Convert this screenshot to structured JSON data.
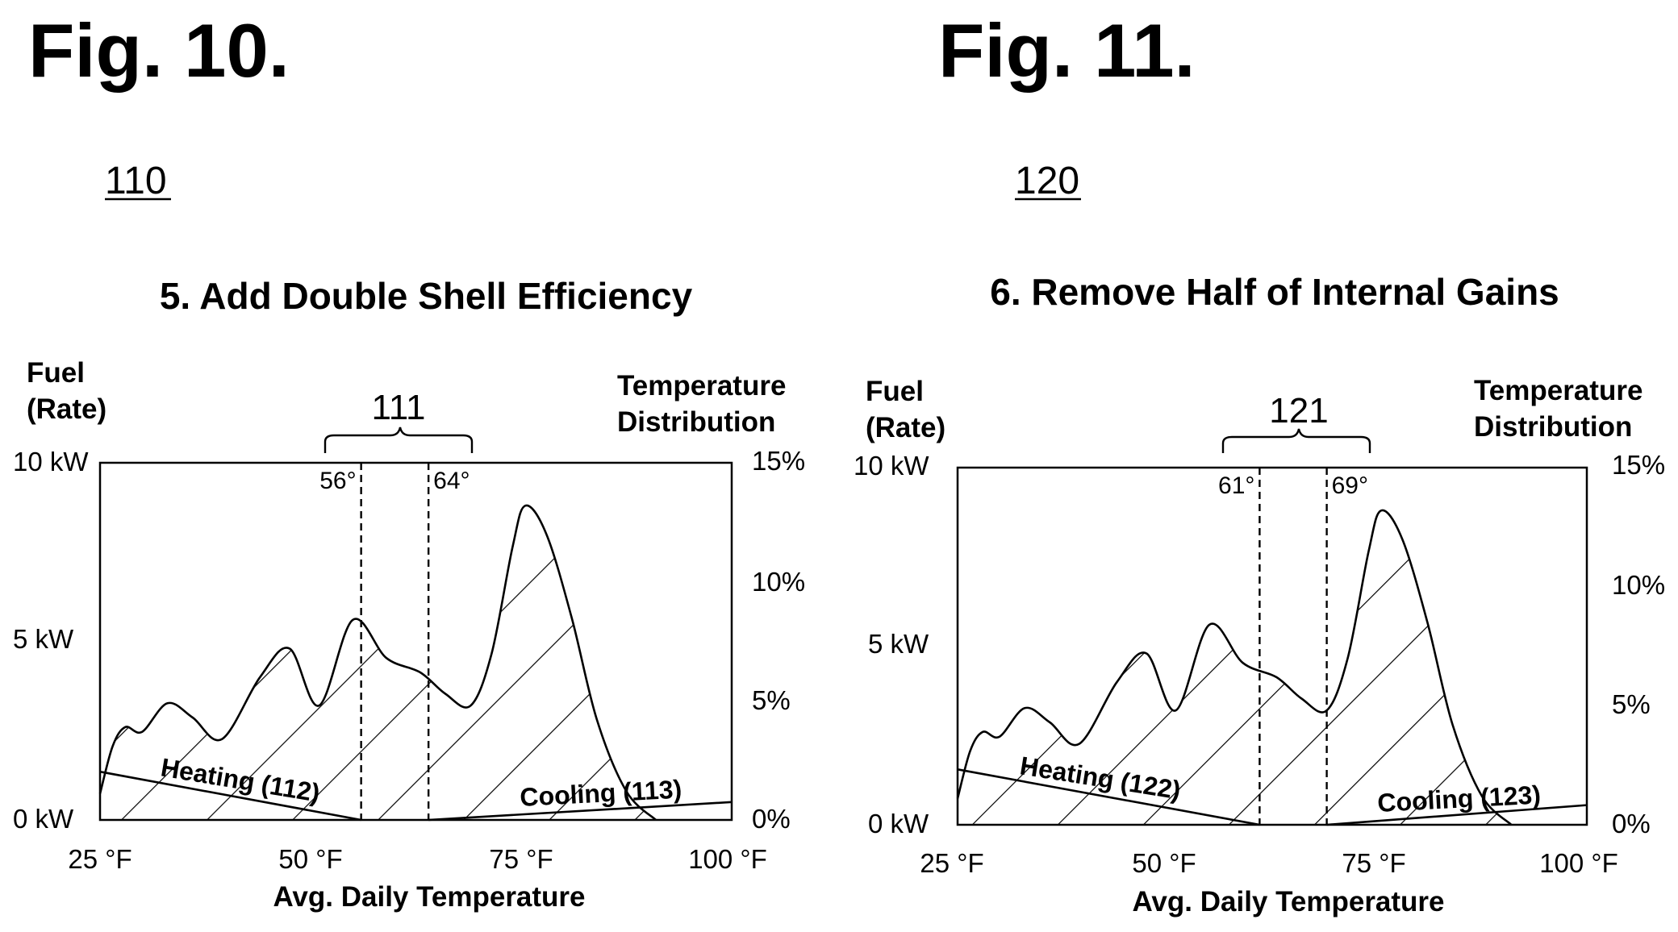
{
  "chart_data": [
    {
      "type": "area",
      "figure_label": "Fig. 10.",
      "ref_number": "110",
      "title": "5. Add Double Shell Efficiency",
      "left_axis_label_line1": "Fuel",
      "left_axis_label_line2": "(Rate)",
      "right_axis_label_line1": "Temperature",
      "right_axis_label_line2": "Distribution",
      "xlabel": "Avg. Daily Temperature",
      "xlim": [
        25,
        100
      ],
      "ylim_left": [
        0,
        10
      ],
      "ylim_right": [
        0,
        15
      ],
      "x_ticks": [
        "25 °F",
        "50 °F",
        "75 °F",
        "100 °F"
      ],
      "y_left_ticks": [
        "10 kW",
        "5 kW",
        "0 kW"
      ],
      "y_right_ticks": [
        "15%",
        "10%",
        "5%",
        "0%"
      ],
      "brace_label": "111",
      "balance_points": [
        {
          "label": "56°",
          "x": 56
        },
        {
          "label": "64°",
          "x": 64
        }
      ],
      "heating_label": "Heating (112)",
      "cooling_label": "Cooling (113)",
      "heating_line": {
        "x": [
          25,
          56
        ],
        "y": [
          1.35,
          0
        ]
      },
      "cooling_line": {
        "x": [
          64,
          100
        ],
        "y": [
          0,
          0.5
        ]
      },
      "series": [
        {
          "name": "Temperature Distribution",
          "axis": "right",
          "x": [
            25,
            26.5,
            28,
            30,
            33,
            36,
            39.5,
            44,
            47.5,
            51,
            55,
            59,
            63,
            66,
            69,
            71.5,
            74,
            75.5,
            78,
            81,
            84,
            87.5,
            91
          ],
          "y": [
            1.1,
            3.1,
            3.9,
            3.7,
            4.9,
            4.3,
            3.4,
            6.0,
            7.2,
            4.8,
            8.4,
            6.8,
            6.2,
            5.3,
            4.8,
            7.0,
            11.5,
            13.2,
            12.0,
            8.5,
            4.2,
            1.2,
            0
          ]
        }
      ]
    },
    {
      "type": "area",
      "figure_label": "Fig. 11.",
      "ref_number": "120",
      "title": "6. Remove Half of Internal Gains",
      "left_axis_label_line1": "Fuel",
      "left_axis_label_line2": "(Rate)",
      "right_axis_label_line1": "Temperature",
      "right_axis_label_line2": "Distribution",
      "xlabel": "Avg. Daily Temperature",
      "xlim": [
        25,
        100
      ],
      "ylim_left": [
        0,
        10
      ],
      "ylim_right": [
        0,
        15
      ],
      "x_ticks": [
        "25 °F",
        "50 °F",
        "75 °F",
        "100 °F"
      ],
      "y_left_ticks": [
        "10 kW",
        "5 kW",
        "0 kW"
      ],
      "y_right_ticks": [
        "15%",
        "10%",
        "5%",
        "0%"
      ],
      "brace_label": "121",
      "balance_points": [
        {
          "label": "61°",
          "x": 61
        },
        {
          "label": "69°",
          "x": 69
        }
      ],
      "heating_label": "Heating (122)",
      "cooling_label": "Cooling (123)",
      "heating_line": {
        "x": [
          25,
          61
        ],
        "y": [
          1.55,
          0
        ]
      },
      "cooling_line": {
        "x": [
          69,
          100
        ],
        "y": [
          0,
          0.55
        ]
      },
      "series": [
        {
          "name": "Temperature Distribution",
          "axis": "right",
          "x": [
            25,
            26.5,
            28,
            30,
            33,
            36,
            39.5,
            44,
            47.5,
            51,
            55,
            59,
            63,
            66,
            69,
            71.5,
            74,
            75.5,
            78,
            81,
            84,
            87.5,
            91
          ],
          "y": [
            1.1,
            3.1,
            3.9,
            3.7,
            4.9,
            4.3,
            3.4,
            6.0,
            7.2,
            4.8,
            8.4,
            6.8,
            6.2,
            5.3,
            4.8,
            7.0,
            11.5,
            13.2,
            12.0,
            8.5,
            4.2,
            1.2,
            0
          ]
        }
      ]
    }
  ]
}
